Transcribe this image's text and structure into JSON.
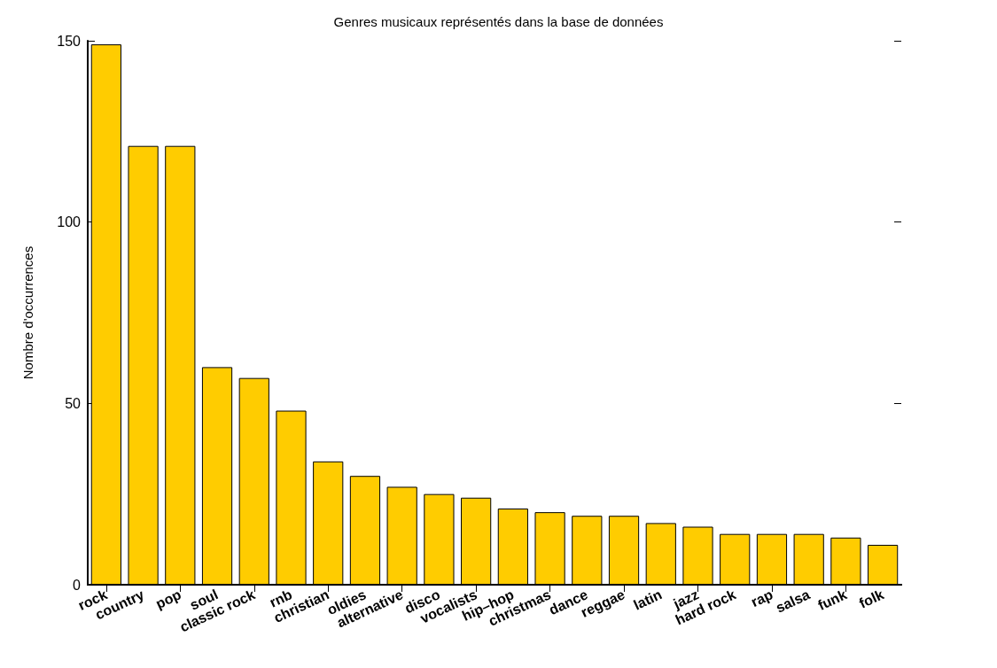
{
  "chart_data": {
    "type": "bar",
    "title": "Genres musicaux représentés dans la base de données",
    "ylabel": "Nombre d'occurrences",
    "categories": [
      "rock",
      "country",
      "pop",
      "soul",
      "classic rock",
      "rnb",
      "christian",
      "oldies",
      "alternative",
      "disco",
      "vocalists",
      "hip–hop",
      "christmas",
      "dance",
      "reggae",
      "latin",
      "jazz",
      "hard rock",
      "rap",
      "salsa",
      "funk",
      "folk"
    ],
    "values": [
      149,
      121,
      121,
      60,
      57,
      48,
      34,
      30,
      27,
      25,
      24,
      21,
      20,
      19,
      19,
      17,
      16,
      14,
      14,
      14,
      13,
      11
    ],
    "color": "#ffcc00",
    "ylim": [
      0,
      150
    ],
    "yticks": [
      0,
      50,
      100,
      150
    ],
    "grid": false
  }
}
